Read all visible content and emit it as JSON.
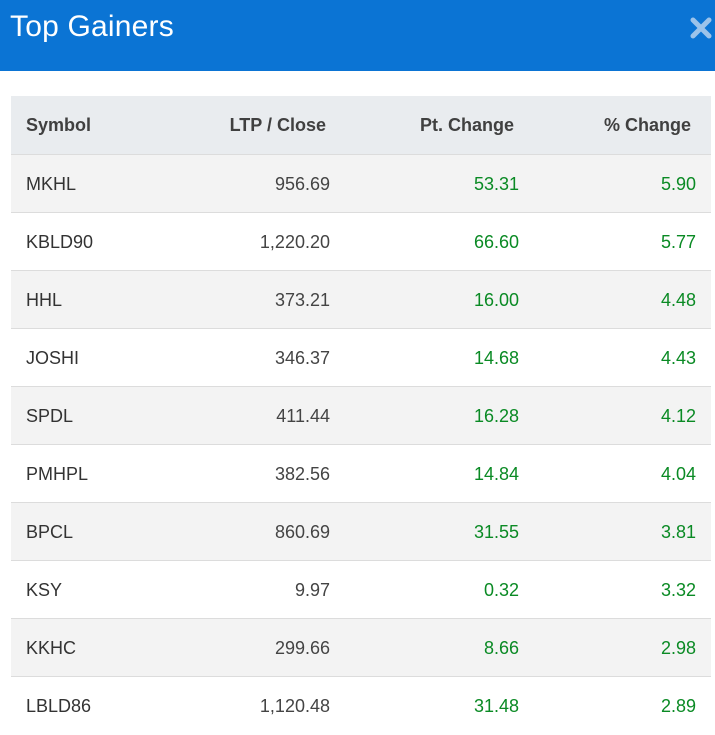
{
  "header": {
    "title": "Top Gainers",
    "close_icon": "close-icon"
  },
  "table": {
    "columns": [
      "Symbol",
      "LTP / Close",
      "Pt. Change",
      "% Change"
    ],
    "rows": [
      {
        "symbol": "MKHL",
        "ltp": "956.69",
        "pt_change": "53.31",
        "pct_change": "5.90"
      },
      {
        "symbol": "KBLD90",
        "ltp": "1,220.20",
        "pt_change": "66.60",
        "pct_change": "5.77"
      },
      {
        "symbol": "HHL",
        "ltp": "373.21",
        "pt_change": "16.00",
        "pct_change": "4.48"
      },
      {
        "symbol": "JOSHI",
        "ltp": "346.37",
        "pt_change": "14.68",
        "pct_change": "4.43"
      },
      {
        "symbol": "SPDL",
        "ltp": "411.44",
        "pt_change": "16.28",
        "pct_change": "4.12"
      },
      {
        "symbol": "PMHPL",
        "ltp": "382.56",
        "pt_change": "14.84",
        "pct_change": "4.04"
      },
      {
        "symbol": "BPCL",
        "ltp": "860.69",
        "pt_change": "31.55",
        "pct_change": "3.81"
      },
      {
        "symbol": "KSY",
        "ltp": "9.97",
        "pt_change": "0.32",
        "pct_change": "3.32"
      },
      {
        "symbol": "KKHC",
        "ltp": "299.66",
        "pt_change": "8.66",
        "pct_change": "2.98"
      },
      {
        "symbol": "LBLD86",
        "ltp": "1,120.48",
        "pt_change": "31.48",
        "pct_change": "2.89"
      }
    ]
  },
  "colors": {
    "header_bg": "#0b74d4",
    "gain_green": "#0a8a24"
  }
}
